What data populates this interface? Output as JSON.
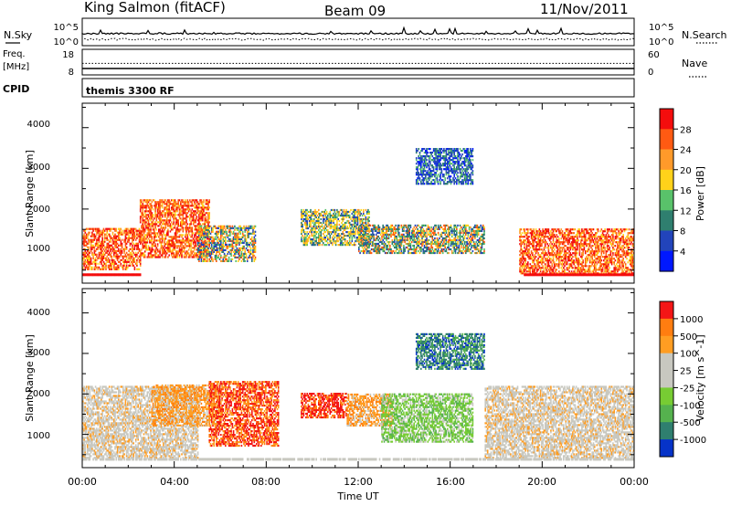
{
  "header": {
    "station": "King Salmon (fitACF)",
    "beam": "Beam 09",
    "date": "11/Nov/2011"
  },
  "status_panels": {
    "nsky_label": "N.Sky",
    "nsearch_label": "N.Search",
    "freq_label": "Freq.",
    "freq_unit": "[MHz]",
    "nave_label": "Nave",
    "cpid_label": "CPID",
    "cpid_value": "themis 3300 RF",
    "noise_ticks_left": [
      "10^5",
      "10^0"
    ],
    "noise_ticks_right": [
      "10^5",
      "10^0"
    ],
    "freq_ticks": [
      "18",
      "8"
    ],
    "nave_ticks": [
      "60",
      "0"
    ],
    "freq_level_mhz": 10.5,
    "nave_level": 27
  },
  "chart_data": [
    {
      "type": "heatmap",
      "name": "power",
      "ylabel": "Slant Range [km]",
      "yticks": [
        "1000",
        "2000",
        "3000",
        "4000"
      ],
      "ylim": [
        180,
        4600
      ],
      "colorbar": {
        "label": "Power [dB]",
        "ticks": [
          "4",
          "8",
          "12",
          "16",
          "20",
          "24",
          "28"
        ],
        "range": [
          0,
          30
        ],
        "colors": [
          "#0018ff",
          "#2244bb",
          "#2f7f6f",
          "#59c26a",
          "#ffd21a",
          "#ff9a2a",
          "#ff5a12",
          "#f40d0d"
        ]
      },
      "echo_regions": [
        {
          "t": [
            0.0,
            2.5
          ],
          "r": [
            500,
            1500
          ],
          "level": "strong"
        },
        {
          "t": [
            2.5,
            5.5
          ],
          "r": [
            800,
            2200
          ],
          "level": "strong"
        },
        {
          "t": [
            5.0,
            7.5
          ],
          "r": [
            700,
            1600
          ],
          "level": "mixed"
        },
        {
          "t": [
            9.5,
            12.5
          ],
          "r": [
            1100,
            2000
          ],
          "level": "medium"
        },
        {
          "t": [
            12.0,
            17.5
          ],
          "r": [
            900,
            1600
          ],
          "level": "weak-medium"
        },
        {
          "t": [
            14.5,
            17.0
          ],
          "r": [
            2600,
            3500
          ],
          "level": "weak"
        },
        {
          "t": [
            19.0,
            24.0
          ],
          "r": [
            400,
            1500
          ],
          "level": "strong"
        }
      ]
    },
    {
      "type": "heatmap",
      "name": "velocity",
      "ylabel": "Slant Range [km]",
      "yticks": [
        "1000",
        "2000",
        "3000",
        "4000"
      ],
      "ylim": [
        180,
        4600
      ],
      "colorbar": {
        "label": "Velocity [m s^-1]",
        "ticks": [
          "1000",
          "500",
          "100",
          "25",
          "-25",
          "-100",
          "-500",
          "-1000"
        ],
        "colors": [
          "#0633c8",
          "#2f7f6f",
          "#55b24e",
          "#77cc33",
          "#c8c8c0",
          "#c8c8c0",
          "#ff9d22",
          "#ff7d10",
          "#f41616"
        ]
      },
      "echo_regions": [
        {
          "t": [
            0.0,
            5.0
          ],
          "r": [
            400,
            2200
          ],
          "class": "ground scatter"
        },
        {
          "t": [
            3.0,
            6.0
          ],
          "r": [
            1200,
            2200
          ],
          "class": "-100"
        },
        {
          "t": [
            5.5,
            8.5
          ],
          "r": [
            700,
            2300
          ],
          "class": "-500 to -1000"
        },
        {
          "t": [
            9.5,
            11.5
          ],
          "r": [
            1400,
            2000
          ],
          "class": "-1000"
        },
        {
          "t": [
            11.5,
            13.5
          ],
          "r": [
            1200,
            2000
          ],
          "class": "-100"
        },
        {
          "t": [
            13.0,
            17.0
          ],
          "r": [
            800,
            2000
          ],
          "class": "100"
        },
        {
          "t": [
            14.5,
            17.5
          ],
          "r": [
            2600,
            3500
          ],
          "class": "500"
        },
        {
          "t": [
            17.5,
            24.0
          ],
          "r": [
            400,
            2200
          ],
          "class": "ground scatter"
        }
      ]
    }
  ],
  "x_axis": {
    "label": "Time UT",
    "ticks": [
      "00:00",
      "04:00",
      "08:00",
      "12:00",
      "16:00",
      "20:00",
      "00:00"
    ],
    "range_hours": [
      0,
      24
    ]
  }
}
